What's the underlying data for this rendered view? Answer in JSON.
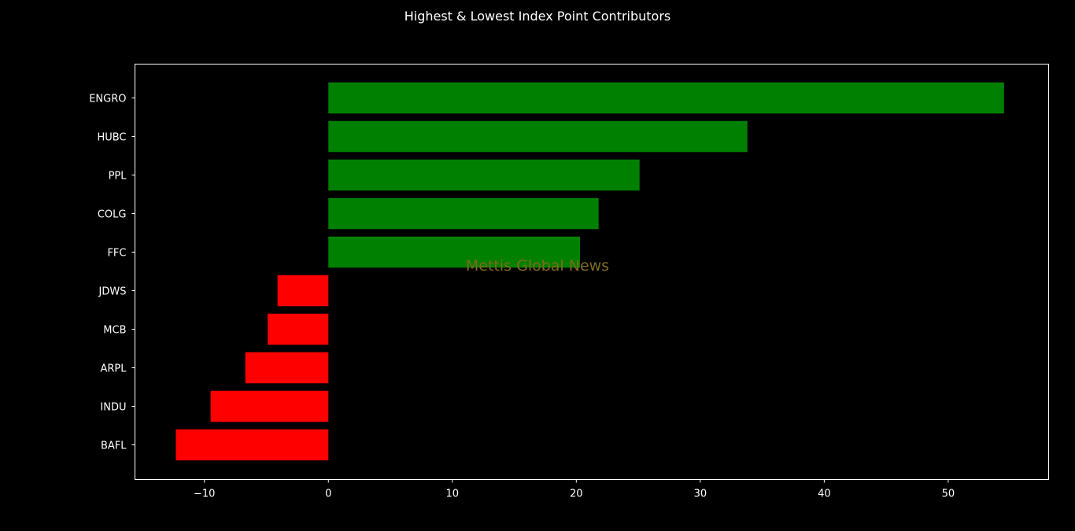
{
  "chart_data": {
    "type": "bar",
    "orientation": "horizontal",
    "title": "Highest & Lowest Index Point Contributors",
    "categories": [
      "ENGRO",
      "HUBC",
      "PPL",
      "COLG",
      "FFC",
      "JDWS",
      "MCB",
      "ARPL",
      "INDU",
      "BAFL"
    ],
    "values": [
      54.5,
      33.8,
      25.1,
      21.8,
      20.3,
      -4.1,
      -4.9,
      -6.7,
      -9.5,
      -12.3
    ],
    "xlim": [
      -15.6,
      58.1
    ],
    "xticks": [
      -10,
      0,
      10,
      20,
      30,
      40,
      50
    ],
    "xtick_labels": [
      "−10",
      "0",
      "10",
      "20",
      "30",
      "40",
      "50"
    ],
    "xlabel": "",
    "ylabel": "",
    "grid": false,
    "colors": {
      "positive": "#008000",
      "negative": "#ff0000",
      "background": "#000000",
      "axes": "#ffffff",
      "text": "#ffffff",
      "watermark": "#806a1d"
    },
    "watermark": "Mettis Global News"
  }
}
